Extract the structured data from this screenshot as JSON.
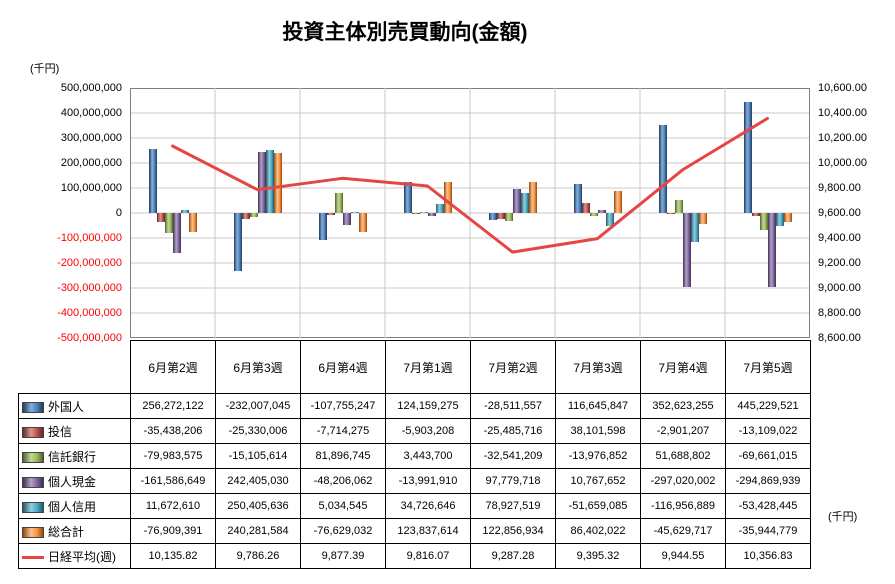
{
  "title": "投資主体別売買動向(金額)",
  "axis_unit_left": "(千円)",
  "axis_unit_right": "(千円)",
  "chart_data": {
    "type": "bar",
    "title": "投資主体別売買動向(金額)",
    "categories": [
      "6月第2週",
      "6月第3週",
      "6月第4週",
      "7月第1週",
      "7月第2週",
      "7月第3週",
      "7月第4週",
      "7月第5週"
    ],
    "series": [
      {
        "name": "外国人",
        "color": "#4F81BD",
        "dark": "#1F3B5C",
        "light": "#85AEDC",
        "values": [
          256272122,
          -232007045,
          -107755247,
          124159275,
          -28511557,
          116645847,
          352623255,
          445229521
        ]
      },
      {
        "name": "投信",
        "color": "#C0504D",
        "dark": "#632523",
        "light": "#D99694",
        "values": [
          -35438206,
          -25330006,
          -7714275,
          -5903208,
          -25485716,
          38101598,
          -2901207,
          -13109022
        ]
      },
      {
        "name": "信託銀行",
        "color": "#9BBB59",
        "dark": "#4F6228",
        "light": "#C3D69B",
        "values": [
          -79983575,
          -15105614,
          81896745,
          3443700,
          -32541209,
          -13976852,
          51688802,
          -69661015
        ]
      },
      {
        "name": "個人現金",
        "color": "#8064A2",
        "dark": "#3F3151",
        "light": "#B3A2C7",
        "values": [
          -161586649,
          242405030,
          -48206062,
          -13991910,
          97779718,
          10767652,
          -297020002,
          -294869939
        ]
      },
      {
        "name": "個人信用",
        "color": "#4BACC6",
        "dark": "#215967",
        "light": "#93CDDD",
        "values": [
          11672610,
          250405636,
          5034545,
          34726646,
          78927519,
          -51659085,
          -116956889,
          -53428445
        ]
      },
      {
        "name": "総合計",
        "color": "#F79646",
        "dark": "#984807",
        "light": "#FAC090",
        "values": [
          -76909391,
          240281584,
          -76629032,
          123837614,
          122856934,
          86402022,
          -45629717,
          -35944779
        ]
      }
    ],
    "line_series": {
      "name": "日経平均(週)",
      "color": "#E64545",
      "axis": "right",
      "values": [
        10135.82,
        9786.26,
        9877.39,
        9816.07,
        9287.28,
        9395.32,
        9944.55,
        10356.83
      ]
    },
    "left_axis": {
      "min": -500000000,
      "max": 500000000,
      "step": 100000000,
      "ticks": [
        "500,000,000",
        "400,000,000",
        "300,000,000",
        "200,000,000",
        "100,000,000",
        "0",
        "-100,000,000",
        "-200,000,000",
        "-300,000,000",
        "-400,000,000",
        "-500,000,000"
      ]
    },
    "right_axis": {
      "min": 8600,
      "max": 10600,
      "step": 200,
      "ticks": [
        "10,600.00",
        "10,400.00",
        "10,200.00",
        "10,000.00",
        "9,800.00",
        "9,600.00",
        "9,400.00",
        "9,200.00",
        "9,000.00",
        "8,800.00",
        "8,600.00"
      ]
    },
    "grid": true,
    "legend_position": "table-left",
    "colors": {
      "grid": "#C8C8C8",
      "plot_border": "#7F7F7F",
      "negative_tick": "#FF0000"
    }
  },
  "table": {
    "rows": [
      {
        "label": "外国人",
        "values": [
          "256,272,122",
          "-232,007,045",
          "-107,755,247",
          "124,159,275",
          "-28,511,557",
          "116,645,847",
          "352,623,255",
          "445,229,521"
        ]
      },
      {
        "label": "投信",
        "values": [
          "-35,438,206",
          "-25,330,006",
          "-7,714,275",
          "-5,903,208",
          "-25,485,716",
          "38,101,598",
          "-2,901,207",
          "-13,109,022"
        ]
      },
      {
        "label": "信託銀行",
        "values": [
          "-79,983,575",
          "-15,105,614",
          "81,896,745",
          "3,443,700",
          "-32,541,209",
          "-13,976,852",
          "51,688,802",
          "-69,661,015"
        ]
      },
      {
        "label": "個人現金",
        "values": [
          "-161,586,649",
          "242,405,030",
          "-48,206,062",
          "-13,991,910",
          "97,779,718",
          "10,767,652",
          "-297,020,002",
          "-294,869,939"
        ]
      },
      {
        "label": "個人信用",
        "values": [
          "11,672,610",
          "250,405,636",
          "5,034,545",
          "34,726,646",
          "78,927,519",
          "-51,659,085",
          "-116,956,889",
          "-53,428,445"
        ]
      },
      {
        "label": "総合計",
        "values": [
          "-76,909,391",
          "240,281,584",
          "-76,629,032",
          "123,837,614",
          "122,856,934",
          "86,402,022",
          "-45,629,717",
          "-35,944,779"
        ]
      },
      {
        "label": "日経平均(週)",
        "values": [
          "10,135.82",
          "9,786.26",
          "9,877.39",
          "9,816.07",
          "9,287.28",
          "9,395.32",
          "9,944.55",
          "10,356.83"
        ]
      }
    ]
  }
}
